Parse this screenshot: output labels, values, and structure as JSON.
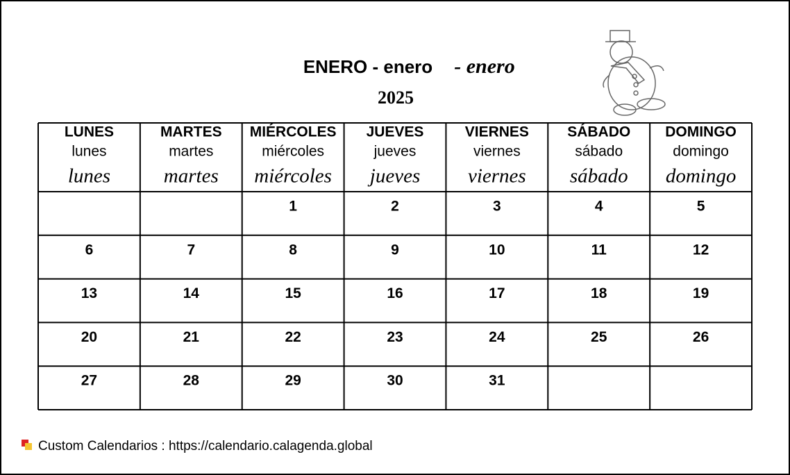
{
  "header": {
    "title": "ENERO - enero",
    "title_script": "- enero",
    "year": "2025"
  },
  "table": {
    "columns": [
      [
        "LUNES",
        "lunes",
        "lunes"
      ],
      [
        "MARTES",
        "martes",
        "martes"
      ],
      [
        "MIÉRCOLES",
        "miércoles",
        "miércoles"
      ],
      [
        "JUEVES",
        "jueves",
        "jueves"
      ],
      [
        "VIERNES",
        "viernes",
        "viernes"
      ],
      [
        "SÁBADO",
        "sábado",
        "sábado"
      ],
      [
        "DOMINGO",
        "domingo",
        "domingo"
      ]
    ],
    "rows": [
      [
        null,
        null,
        1,
        2,
        3,
        4,
        5
      ],
      [
        6,
        7,
        8,
        9,
        10,
        11,
        12
      ],
      [
        13,
        14,
        15,
        16,
        17,
        18,
        19
      ],
      [
        20,
        21,
        22,
        23,
        24,
        25,
        26
      ],
      [
        27,
        28,
        29,
        30,
        31,
        null,
        null
      ]
    ]
  },
  "footer": {
    "text": "Custom Calendarios : https://calendario.calagenda.global"
  }
}
